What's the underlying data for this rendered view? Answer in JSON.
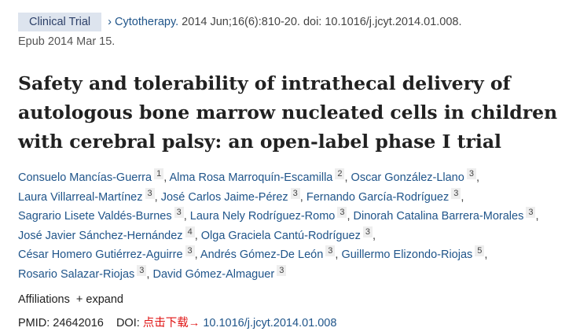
{
  "header": {
    "badge": "Clinical Trial",
    "chevron": "›",
    "journal": "Cytotherapy.",
    "citation": " 2014 Jun;16(6):810-20. doi: 10.1016/j.jcyt.2014.01.008.",
    "epub": "Epub 2014 Mar 15."
  },
  "title": "Safety and tolerability of intrathecal delivery of autologous bone marrow nucleated cells in children with cerebral palsy: an open-label phase I trial",
  "authors": [
    [
      {
        "name": "Consuelo Mancías-Guerra",
        "aff": "1"
      },
      {
        "name": "Alma Rosa Marroquín-Escamilla",
        "aff": "2"
      },
      {
        "name": "Oscar González-Llano",
        "aff": "3"
      }
    ],
    [
      {
        "name": "Laura Villarreal-Martínez",
        "aff": "3"
      },
      {
        "name": "José Carlos Jaime-Pérez",
        "aff": "3"
      },
      {
        "name": "Fernando García-Rodríguez",
        "aff": "3"
      }
    ],
    [
      {
        "name": "Sagrario Lisete Valdés-Burnes",
        "aff": "3"
      },
      {
        "name": "Laura Nely Rodríguez-Romo",
        "aff": "3"
      },
      {
        "name": "Dinorah Catalina Barrera-Morales",
        "aff": "3"
      }
    ],
    [
      {
        "name": "José Javier Sánchez-Hernández",
        "aff": "4"
      },
      {
        "name": "Olga Graciela Cantú-Rodríguez",
        "aff": "3"
      }
    ],
    [
      {
        "name": "César Homero Gutiérrez-Aguirre",
        "aff": "3"
      },
      {
        "name": "Andrés Gómez-De León",
        "aff": "3"
      },
      {
        "name": "Guillermo Elizondo-Riojas",
        "aff": "5"
      }
    ],
    [
      {
        "name": "Rosario Salazar-Riojas",
        "aff": "3"
      },
      {
        "name": "David Gómez-Almaguer",
        "aff": "3"
      }
    ]
  ],
  "affiliations": {
    "label": "Affiliations",
    "expand": "+ expand"
  },
  "ids": {
    "pmid_label": "PMID: 24642016",
    "doi_label": "DOI:",
    "download": "点击下载→",
    "doi": "10.1016/j.jcyt.2014.01.008"
  }
}
